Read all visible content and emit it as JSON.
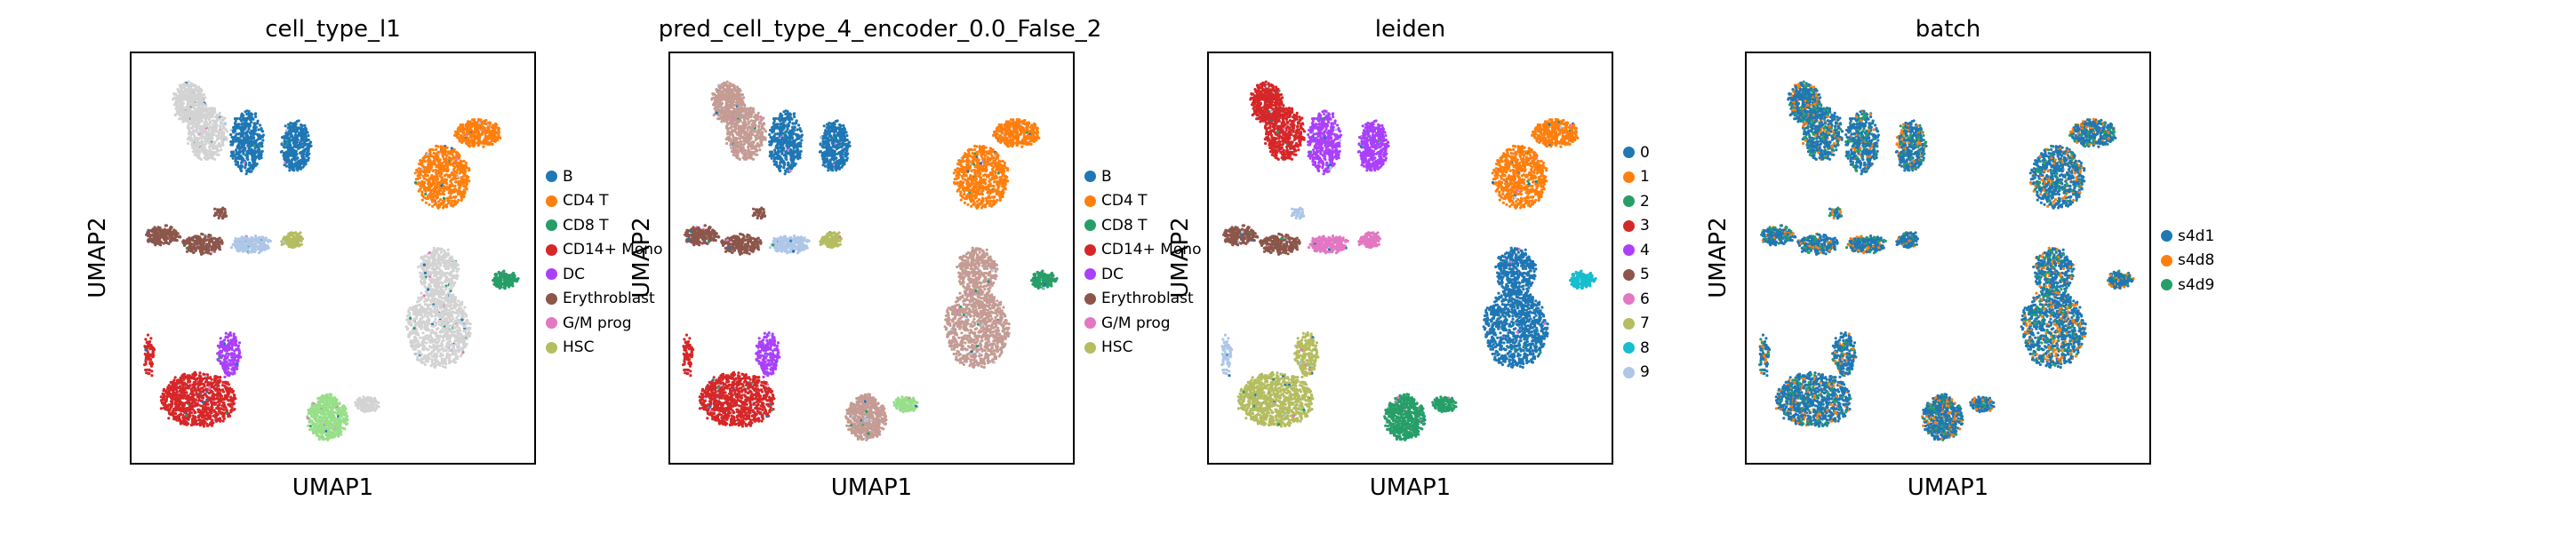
{
  "chart_data": [
    {
      "type": "scatter",
      "title": "cell_type_l1",
      "xlabel": "UMAP1",
      "ylabel": "UMAP2",
      "legend": [
        {
          "label": "B",
          "color": "#1f77b4"
        },
        {
          "label": "CD4 T",
          "color": "#ff7f0e"
        },
        {
          "label": "CD8 T",
          "color": "#279e68"
        },
        {
          "label": "CD14+ Mono",
          "color": "#d62728"
        },
        {
          "label": "DC",
          "color": "#aa40fc"
        },
        {
          "label": "Erythroblast",
          "color": "#8c564b"
        },
        {
          "label": "G/M prog",
          "color": "#e377c2"
        },
        {
          "label": "HSC",
          "color": "#b5bd61"
        }
      ],
      "legend_position": "right",
      "unassigned_color": "#d3d3d3"
    },
    {
      "type": "scatter",
      "title": "pred_cell_type_4_encoder_0.0_False_2",
      "xlabel": "UMAP1",
      "ylabel": "UMAP2",
      "legend": [
        {
          "label": "B",
          "color": "#1f77b4"
        },
        {
          "label": "CD4 T",
          "color": "#ff7f0e"
        },
        {
          "label": "CD8 T",
          "color": "#279e68"
        },
        {
          "label": "CD14+ Mono",
          "color": "#d62728"
        },
        {
          "label": "DC",
          "color": "#aa40fc"
        },
        {
          "label": "Erythroblast",
          "color": "#8c564b"
        },
        {
          "label": "G/M prog",
          "color": "#e377c2"
        },
        {
          "label": "HSC",
          "color": "#b5bd61"
        }
      ],
      "legend_position": "right",
      "unassigned_color": "#c49c94"
    },
    {
      "type": "scatter",
      "title": "leiden",
      "xlabel": "UMAP1",
      "ylabel": "UMAP2",
      "legend": [
        {
          "label": "0",
          "color": "#1f77b4"
        },
        {
          "label": "1",
          "color": "#ff7f0e"
        },
        {
          "label": "2",
          "color": "#279e68"
        },
        {
          "label": "3",
          "color": "#d62728"
        },
        {
          "label": "4",
          "color": "#aa40fc"
        },
        {
          "label": "5",
          "color": "#8c564b"
        },
        {
          "label": "6",
          "color": "#e377c2"
        },
        {
          "label": "7",
          "color": "#b5bd61"
        },
        {
          "label": "8",
          "color": "#17becf"
        },
        {
          "label": "9",
          "color": "#aec7e8"
        }
      ],
      "legend_position": "right"
    },
    {
      "type": "scatter",
      "title": "batch",
      "xlabel": "UMAP1",
      "ylabel": "UMAP2",
      "legend": [
        {
          "label": "s4d1",
          "color": "#1f77b4"
        },
        {
          "label": "s4d8",
          "color": "#ff7f0e"
        },
        {
          "label": "s4d9",
          "color": "#279e68"
        }
      ],
      "legend_position": "right"
    }
  ]
}
